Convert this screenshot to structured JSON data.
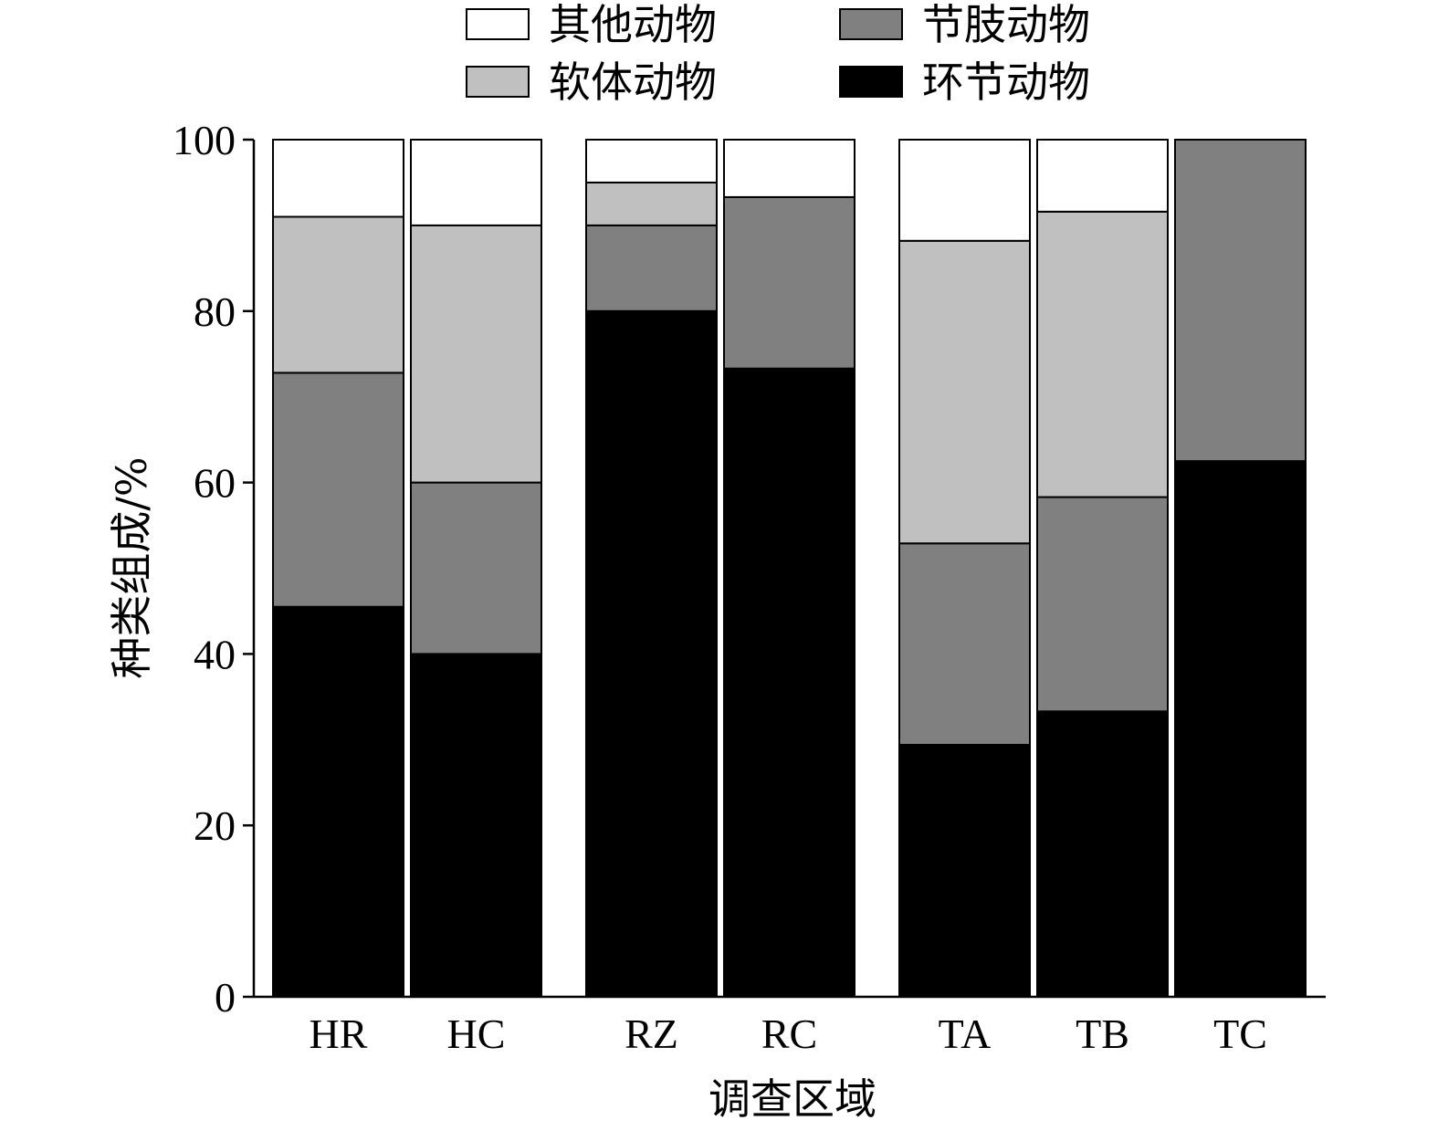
{
  "chart_data": {
    "type": "bar",
    "stacked": true,
    "categories": [
      "HR",
      "HC",
      "RZ",
      "RC",
      "TA",
      "TB",
      "TC"
    ],
    "groups": [
      [
        "HR",
        "HC"
      ],
      [
        "RZ",
        "RC"
      ],
      [
        "TA",
        "TB",
        "TC"
      ]
    ],
    "series": [
      {
        "name": "环节动物",
        "color": "#000000",
        "values": [
          45.5,
          40.0,
          80.0,
          73.3,
          29.4,
          33.3,
          62.5
        ]
      },
      {
        "name": "节肢动物",
        "color": "#808080",
        "values": [
          27.3,
          20.0,
          10.0,
          20.0,
          23.5,
          25.0,
          37.5
        ]
      },
      {
        "name": "软体动物",
        "color": "#c0c0c0",
        "values": [
          18.2,
          30.0,
          5.0,
          0.0,
          35.3,
          33.3,
          0.0
        ]
      },
      {
        "name": "其他动物",
        "color": "#ffffff",
        "values": [
          9.0,
          10.0,
          5.0,
          6.7,
          11.8,
          8.4,
          0.0
        ]
      }
    ],
    "xlabel": "调查区域",
    "ylabel": "种类组成/%",
    "ylim": [
      0,
      100
    ],
    "yticks": [
      "0",
      "20",
      "40",
      "60",
      "80",
      "100"
    ],
    "grid": false,
    "legend_position": "top",
    "legend_order": [
      "其他动物",
      "节肢动物",
      "软体动物",
      "环节动物"
    ]
  }
}
